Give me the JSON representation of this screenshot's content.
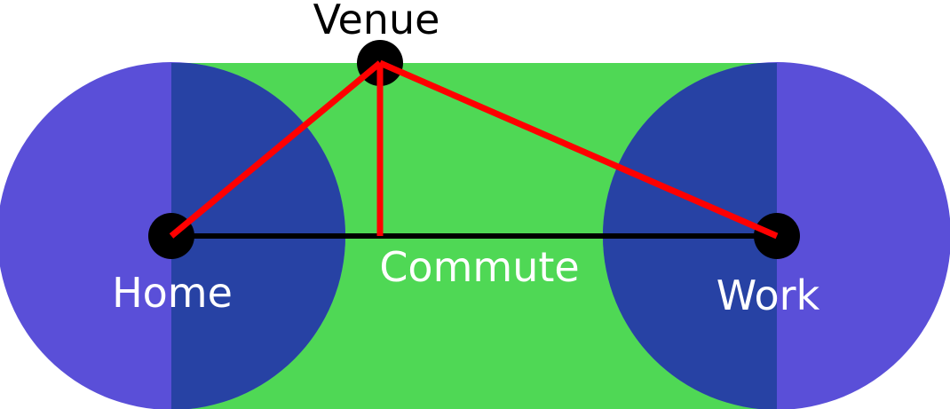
{
  "labels": {
    "venue": "Venue",
    "home": "Home",
    "commute": "Commute",
    "work": "Work"
  },
  "colors": {
    "zone_fill": "#4fd855",
    "disk_outer": "#5a4fd8",
    "disk_overlap": "#2742a4",
    "route": "#ff0000",
    "commute_line": "#000000",
    "node": "#000000",
    "label_on_zone": "#ffffff",
    "label_outside": "#000000"
  }
}
